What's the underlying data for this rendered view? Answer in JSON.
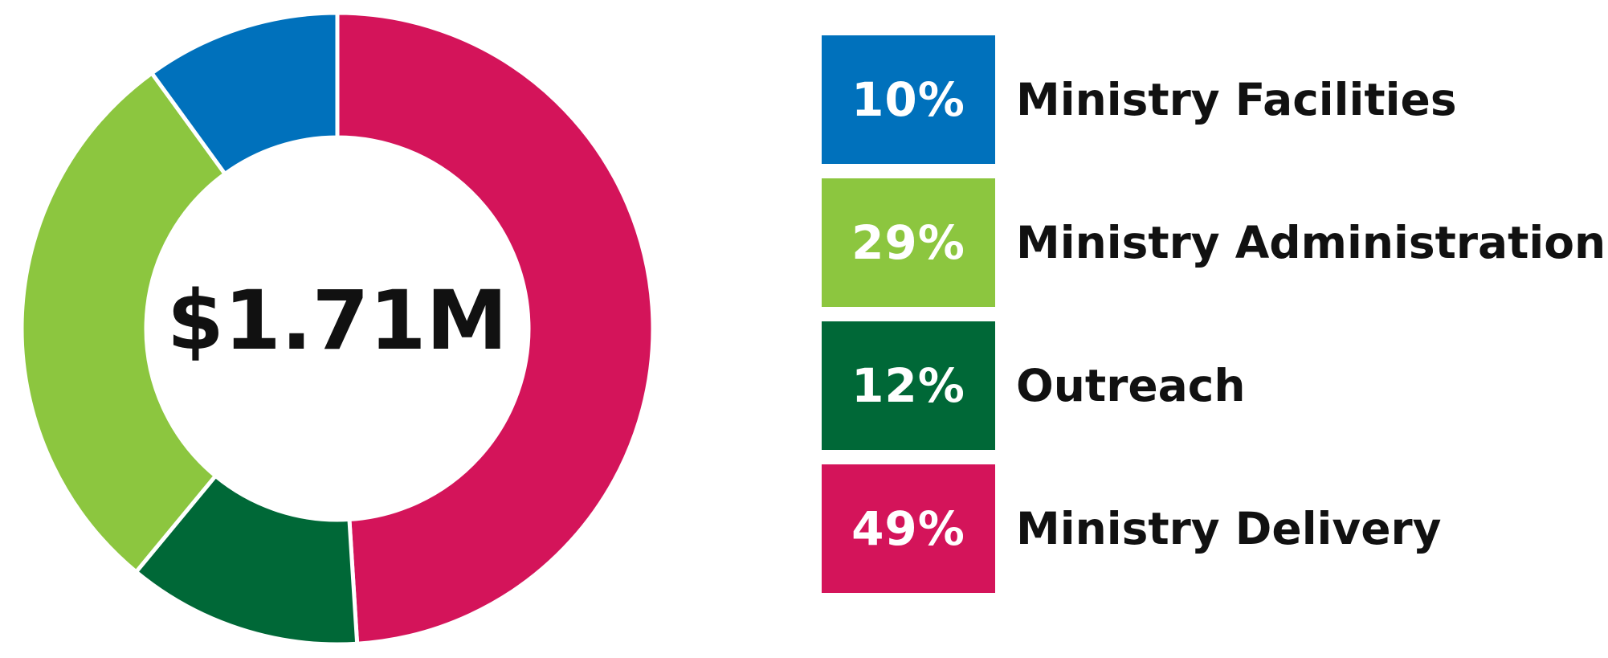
{
  "chart_data": {
    "type": "pie",
    "center_label": "$1.71M",
    "slices": [
      {
        "name": "Ministry Delivery",
        "label": "49%",
        "value": 49,
        "color": "#d4145a"
      },
      {
        "name": "Outreach",
        "label": "12%",
        "value": 12,
        "color": "#006837"
      },
      {
        "name": "Ministry Administration",
        "label": "29%",
        "value": 29,
        "color": "#8cc63f"
      },
      {
        "name": "Ministry Facilities",
        "label": "10%",
        "value": 10,
        "color": "#0071bc"
      }
    ],
    "legend": [
      {
        "percent": "10%",
        "label": "Ministry Facilities",
        "color": "#0071bc"
      },
      {
        "percent": "29%",
        "label": "Ministry Administration",
        "color": "#8cc63f"
      },
      {
        "percent": "12%",
        "label": "Outreach",
        "color": "#006837"
      },
      {
        "percent": "49%",
        "label": "Ministry Delivery",
        "color": "#d4145a"
      }
    ],
    "legend_placement": "right"
  }
}
